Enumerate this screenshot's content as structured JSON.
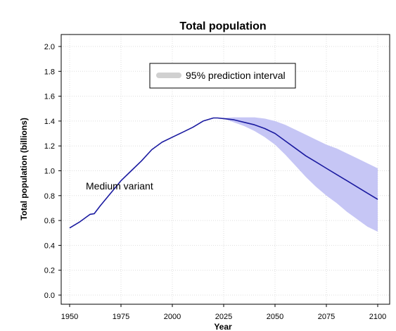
{
  "chart_data": {
    "type": "line",
    "title": "Total population",
    "xlabel": "Year",
    "ylabel": "Total population (billions)",
    "xlim": [
      1950,
      2100
    ],
    "ylim": [
      0.0,
      2.0
    ],
    "xticks": [
      1950,
      1975,
      2000,
      2025,
      2050,
      2075,
      2100
    ],
    "yticks": [
      "0.0",
      "0.2",
      "0.4",
      "0.6",
      "0.8",
      "1.0",
      "1.2",
      "1.4",
      "1.6",
      "1.8",
      "2.0"
    ],
    "grid": true,
    "legend": {
      "position": "top",
      "entries": [
        {
          "label": "95% prediction interval"
        }
      ]
    },
    "annotation": "Medium variant",
    "series": [
      {
        "name": "Medium variant",
        "color": "#1a1aa0",
        "x": [
          1950,
          1955,
          1960,
          1962,
          1965,
          1970,
          1975,
          1980,
          1985,
          1990,
          1995,
          2000,
          2005,
          2010,
          2015,
          2020,
          2022,
          2025,
          2030,
          2035,
          2040,
          2045,
          2050,
          2055,
          2060,
          2065,
          2070,
          2075,
          2080,
          2085,
          2090,
          2095,
          2100
        ],
        "y": [
          0.54,
          0.59,
          0.65,
          0.655,
          0.72,
          0.82,
          0.92,
          1.0,
          1.08,
          1.17,
          1.23,
          1.27,
          1.31,
          1.35,
          1.4,
          1.425,
          1.425,
          1.42,
          1.41,
          1.39,
          1.37,
          1.34,
          1.3,
          1.24,
          1.18,
          1.12,
          1.07,
          1.02,
          0.97,
          0.92,
          0.87,
          0.82,
          0.77
        ]
      }
    ],
    "interval": {
      "label": "95% prediction interval",
      "color": "#c6c6f5",
      "x": [
        2022,
        2025,
        2030,
        2035,
        2040,
        2045,
        2050,
        2055,
        2060,
        2065,
        2070,
        2075,
        2080,
        2085,
        2090,
        2095,
        2100
      ],
      "upper": [
        1.425,
        1.425,
        1.43,
        1.43,
        1.43,
        1.42,
        1.4,
        1.37,
        1.33,
        1.29,
        1.25,
        1.21,
        1.18,
        1.14,
        1.1,
        1.06,
        1.02
      ],
      "lower": [
        1.425,
        1.42,
        1.39,
        1.36,
        1.32,
        1.27,
        1.21,
        1.13,
        1.04,
        0.95,
        0.87,
        0.8,
        0.74,
        0.67,
        0.61,
        0.55,
        0.51
      ]
    }
  }
}
